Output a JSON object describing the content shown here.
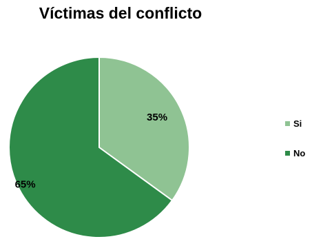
{
  "chart_data": {
    "type": "pie",
    "title": "Víctimas del conflicto",
    "categories": [
      "Si",
      "No"
    ],
    "values": [
      35,
      65
    ],
    "value_labels": [
      "35%",
      "65%"
    ],
    "colors": [
      "#8fc393",
      "#2e8b49"
    ],
    "legend_position": "right"
  }
}
